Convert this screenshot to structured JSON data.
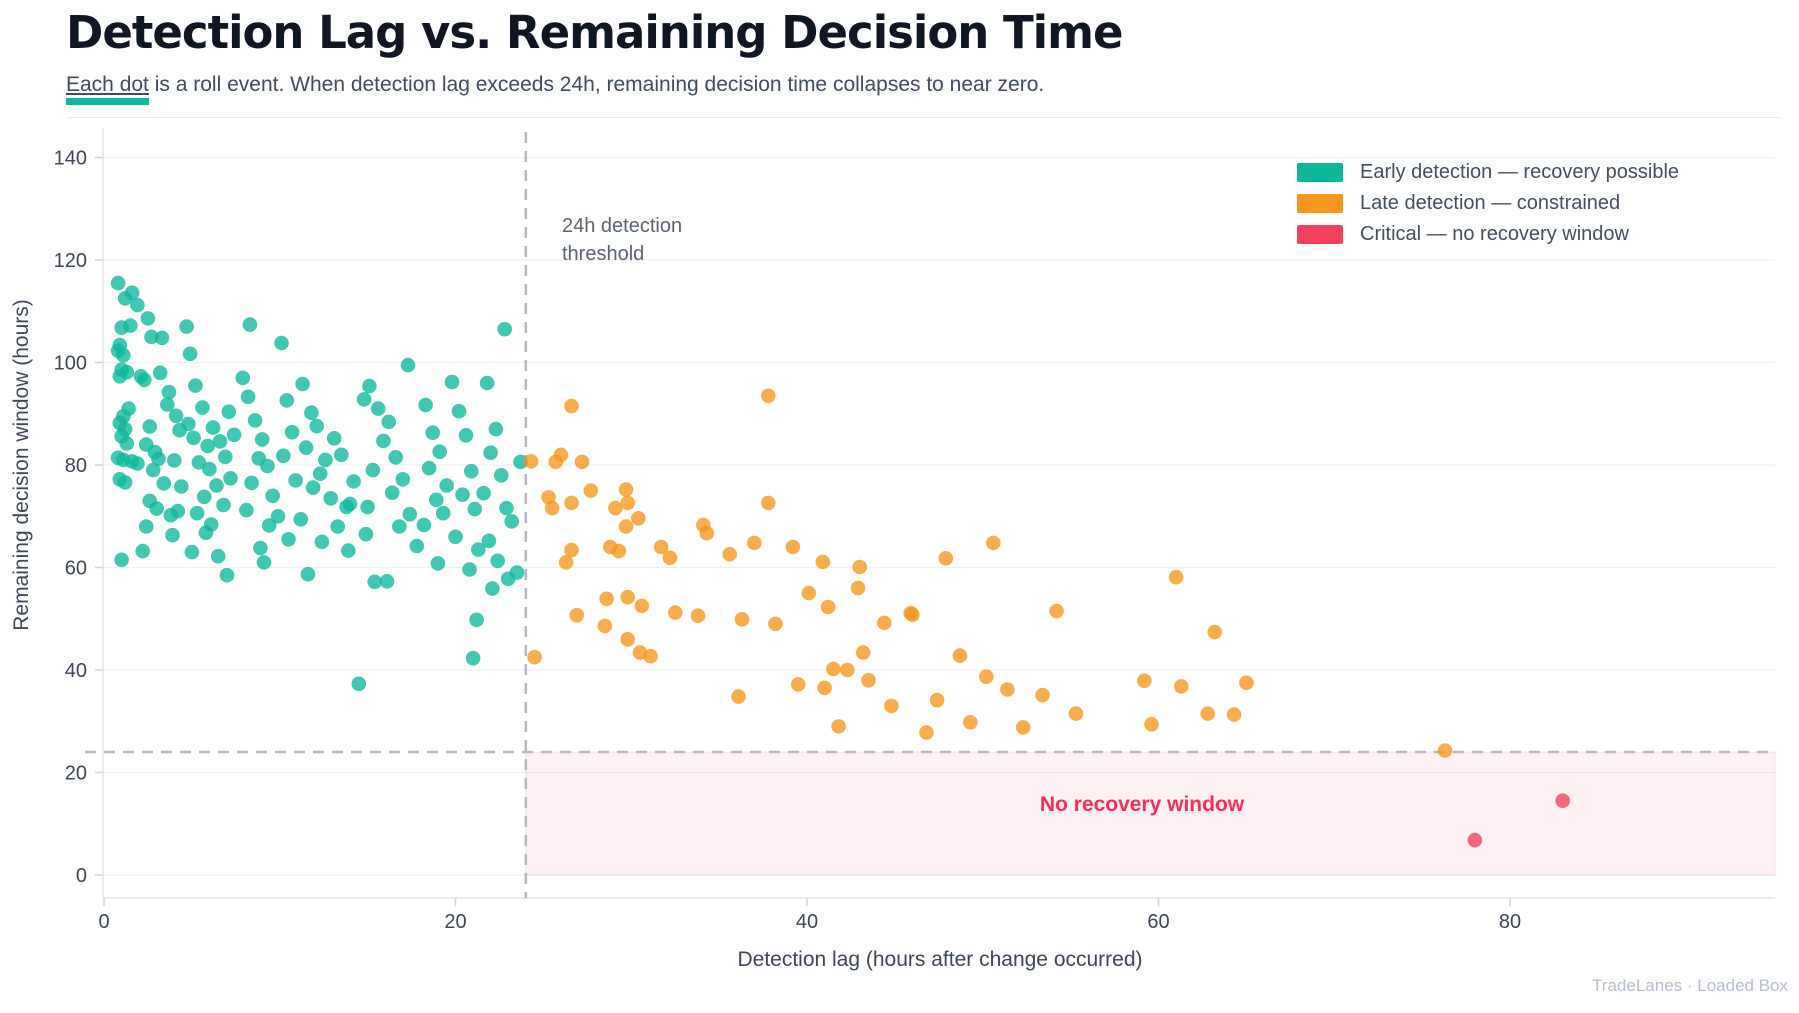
{
  "header": {
    "title": "Detection Lag vs. Remaining Decision Time",
    "subtitle_highlight": "Each dot",
    "subtitle_rest": " is a roll event. When detection lag exceeds 24h, remaining decision time collapses to near zero.",
    "accent_color": "#10b9a0"
  },
  "footer": {
    "text": "TradeLanes · Loaded Box"
  },
  "chart_data": {
    "type": "scatter",
    "title": "Detection Lag vs. Remaining Decision Time",
    "xlabel": "Detection lag (hours after change occurred)",
    "ylabel": "Remaining decision window (hours)",
    "xlim": [
      0,
      95
    ],
    "ylim": [
      -4.5,
      146
    ],
    "xticks": [
      0,
      20,
      40,
      60,
      80
    ],
    "yticks": [
      0,
      20,
      40,
      60,
      80,
      100,
      120,
      140
    ],
    "grid": "horizontal",
    "legend_position": "top-right",
    "threshold": {
      "x": 24,
      "y": 24,
      "label_line1": "24h detection",
      "label_line2": "threshold"
    },
    "no_recovery": {
      "label": "No recovery window",
      "color": "#fb2d52",
      "region": {
        "x_min": 24,
        "x_max": 95,
        "y_min": 0,
        "y_max": 24
      }
    },
    "colors": {
      "grid": "#eef1f5",
      "spine": "#e3e6ec",
      "tick": "#cfd4db",
      "tick_label": "#3e4857",
      "dashed": "#b3b9c5"
    },
    "series": [
      {
        "name": "Early detection — recovery possible",
        "color": "#0cb89c",
        "points": [
          [
            0.8,
            115.5
          ],
          [
            1.2,
            112.5
          ],
          [
            1.6,
            113.6
          ],
          [
            1.9,
            111.2
          ],
          [
            1,
            106.8
          ],
          [
            1.5,
            107.2
          ],
          [
            0.9,
            103.4
          ],
          [
            0.8,
            102.3
          ],
          [
            1.1,
            101.4
          ],
          [
            1,
            98.6
          ],
          [
            1.3,
            98.1
          ],
          [
            0.9,
            97.3
          ],
          [
            1.4,
            91
          ],
          [
            1.1,
            89.5
          ],
          [
            0.9,
            88.2
          ],
          [
            1.2,
            87
          ],
          [
            1,
            85.6
          ],
          [
            1.3,
            84.2
          ],
          [
            0.8,
            81.4
          ],
          [
            1.1,
            81
          ],
          [
            1.6,
            80.7
          ],
          [
            1.9,
            80.3
          ],
          [
            0.9,
            77.2
          ],
          [
            1.2,
            76.6
          ],
          [
            1,
            61.5
          ],
          [
            2.5,
            108.6
          ],
          [
            2.7,
            105
          ],
          [
            3.3,
            104.8
          ],
          [
            2.3,
            96.6
          ],
          [
            2.1,
            97.3
          ],
          [
            3.2,
            98
          ],
          [
            3.7,
            94.2
          ],
          [
            3.6,
            91.8
          ],
          [
            2.6,
            87.5
          ],
          [
            2.4,
            84
          ],
          [
            2.9,
            82.5
          ],
          [
            3.1,
            81.2
          ],
          [
            2.8,
            79
          ],
          [
            3.4,
            76.4
          ],
          [
            2.6,
            73
          ],
          [
            3,
            71.5
          ],
          [
            3.8,
            70.2
          ],
          [
            2.4,
            68
          ],
          [
            4.1,
            89.6
          ],
          [
            4.3,
            86.8
          ],
          [
            4,
            80.9
          ],
          [
            4.4,
            75.8
          ],
          [
            4.2,
            71
          ],
          [
            3.9,
            66.3
          ],
          [
            2.2,
            63.2
          ],
          [
            4.7,
            107
          ],
          [
            4.9,
            101.7
          ],
          [
            5.2,
            95.5
          ],
          [
            5.6,
            91.2
          ],
          [
            4.8,
            88
          ],
          [
            5.1,
            85.3
          ],
          [
            5.9,
            83.7
          ],
          [
            5.4,
            80.5
          ],
          [
            6.2,
            87.3
          ],
          [
            6.6,
            84.6
          ],
          [
            6,
            79.2
          ],
          [
            6.4,
            76
          ],
          [
            5.7,
            73.8
          ],
          [
            6.8,
            72.2
          ],
          [
            5.3,
            70.6
          ],
          [
            6.1,
            68.4
          ],
          [
            7.1,
            90.4
          ],
          [
            7.4,
            85.9
          ],
          [
            6.9,
            81.6
          ],
          [
            7.2,
            77.4
          ],
          [
            5,
            63
          ],
          [
            6.5,
            62.2
          ],
          [
            7,
            58.5
          ],
          [
            5.8,
            66.8
          ],
          [
            8.3,
            107.4
          ],
          [
            8.2,
            93.3
          ],
          [
            7.9,
            97
          ],
          [
            8.6,
            88.7
          ],
          [
            9,
            85
          ],
          [
            8.8,
            81.3
          ],
          [
            9.3,
            79.8
          ],
          [
            8.4,
            76.5
          ],
          [
            9.6,
            74
          ],
          [
            8.1,
            71.2
          ],
          [
            9.9,
            70
          ],
          [
            10.1,
            103.8
          ],
          [
            10.4,
            92.6
          ],
          [
            10.7,
            86.4
          ],
          [
            10.2,
            81.8
          ],
          [
            10.9,
            77
          ],
          [
            9.4,
            68.2
          ],
          [
            10.5,
            65.5
          ],
          [
            8.9,
            63.8
          ],
          [
            9.1,
            61
          ],
          [
            11.3,
            95.8
          ],
          [
            11.8,
            90.2
          ],
          [
            12.1,
            87.6
          ],
          [
            11.5,
            83.4
          ],
          [
            12.6,
            81
          ],
          [
            12.3,
            78.3
          ],
          [
            11.9,
            75.6
          ],
          [
            13.1,
            85.2
          ],
          [
            13.5,
            82
          ],
          [
            12.9,
            73.5
          ],
          [
            13.8,
            71.8
          ],
          [
            11.2,
            69.4
          ],
          [
            13.3,
            68
          ],
          [
            14.2,
            76.8
          ],
          [
            14,
            72.4
          ],
          [
            12.4,
            65
          ],
          [
            13.9,
            63.3
          ],
          [
            14.5,
            37.3
          ],
          [
            11.6,
            58.7
          ],
          [
            15.1,
            95.4
          ],
          [
            14.8,
            92.8
          ],
          [
            15.6,
            91
          ],
          [
            16.2,
            88.4
          ],
          [
            15.9,
            84.7
          ],
          [
            16.6,
            81.5
          ],
          [
            15.3,
            79
          ],
          [
            17,
            77.2
          ],
          [
            16.4,
            74.6
          ],
          [
            15,
            71.8
          ],
          [
            17.4,
            70.4
          ],
          [
            16.8,
            68
          ],
          [
            14.9,
            66.5
          ],
          [
            17.8,
            64.2
          ],
          [
            15.4,
            57.2
          ],
          [
            16.1,
            57.3
          ],
          [
            17.3,
            99.5
          ],
          [
            18.3,
            91.7
          ],
          [
            18.7,
            86.3
          ],
          [
            19.1,
            82.6
          ],
          [
            18.5,
            79.4
          ],
          [
            19.5,
            76
          ],
          [
            18.9,
            73.2
          ],
          [
            19.8,
            96.2
          ],
          [
            20.2,
            90.5
          ],
          [
            20.6,
            85.8
          ],
          [
            19.3,
            70.6
          ],
          [
            20.9,
            78.8
          ],
          [
            20.4,
            74.2
          ],
          [
            18.2,
            68.3
          ],
          [
            21.1,
            71.4
          ],
          [
            20,
            66
          ],
          [
            21.3,
            63.5
          ],
          [
            19,
            60.8
          ],
          [
            20.8,
            59.6
          ],
          [
            21,
            42.3
          ],
          [
            21.2,
            49.8
          ],
          [
            21.8,
            96
          ],
          [
            22.8,
            106.5
          ],
          [
            22.3,
            87
          ],
          [
            22,
            82.4
          ],
          [
            22.6,
            78
          ],
          [
            21.6,
            74.5
          ],
          [
            22.9,
            71.6
          ],
          [
            23.2,
            69
          ],
          [
            21.9,
            65.2
          ],
          [
            22.4,
            61.3
          ],
          [
            23.5,
            59
          ],
          [
            23,
            57.8
          ],
          [
            23.7,
            80.6
          ],
          [
            22.1,
            55.9
          ]
        ]
      },
      {
        "name": "Late detection — constrained",
        "color": "#f9961b",
        "points": [
          [
            24.3,
            80.7
          ],
          [
            25.7,
            80.6
          ],
          [
            25.3,
            73.7
          ],
          [
            25.5,
            71.6
          ],
          [
            26.6,
            91.5
          ],
          [
            26,
            82
          ],
          [
            27.2,
            80.6
          ],
          [
            27.7,
            75
          ],
          [
            29.7,
            75.2
          ],
          [
            26.6,
            72.6
          ],
          [
            29.1,
            71.6
          ],
          [
            29.8,
            72.6
          ],
          [
            30.4,
            69.6
          ],
          [
            29.7,
            68
          ],
          [
            26.6,
            63.4
          ],
          [
            28.8,
            64
          ],
          [
            29.3,
            63.2
          ],
          [
            31.7,
            64
          ],
          [
            32.2,
            61.9
          ],
          [
            34.1,
            68.3
          ],
          [
            34.3,
            66.7
          ],
          [
            37,
            64.8
          ],
          [
            37.8,
            72.6
          ],
          [
            37.8,
            93.5
          ],
          [
            39.2,
            64
          ],
          [
            26.9,
            50.7
          ],
          [
            28.5,
            48.6
          ],
          [
            28.6,
            53.9
          ],
          [
            29.8,
            54.2
          ],
          [
            30.6,
            52.5
          ],
          [
            32.5,
            51.2
          ],
          [
            36.3,
            49.9
          ],
          [
            29.8,
            46
          ],
          [
            30.5,
            43.4
          ],
          [
            31.1,
            42.7
          ],
          [
            24.5,
            42.5
          ],
          [
            26.3,
            61
          ],
          [
            35.6,
            62.6
          ],
          [
            33.8,
            50.6
          ],
          [
            36.1,
            34.8
          ],
          [
            38.2,
            49
          ],
          [
            40.9,
            61.1
          ],
          [
            43,
            60.1
          ],
          [
            42.9,
            56
          ],
          [
            40.1,
            55
          ],
          [
            41.2,
            52.3
          ],
          [
            43.2,
            43.4
          ],
          [
            44.4,
            49.2
          ],
          [
            45.9,
            51.1
          ],
          [
            47.9,
            61.8
          ],
          [
            50.6,
            64.8
          ],
          [
            54.2,
            51.5
          ],
          [
            41.5,
            40.2
          ],
          [
            43.5,
            38
          ],
          [
            46,
            50.8
          ],
          [
            48.7,
            42.8
          ],
          [
            50.2,
            38.7
          ],
          [
            51.4,
            36.2
          ],
          [
            53.4,
            35.1
          ],
          [
            55.3,
            31.5
          ],
          [
            46.8,
            27.8
          ],
          [
            49.3,
            29.8
          ],
          [
            41,
            36.5
          ],
          [
            39.5,
            37.2
          ],
          [
            42.3,
            40
          ],
          [
            44.8,
            33
          ],
          [
            47.4,
            34.1
          ],
          [
            52.3,
            28.8
          ],
          [
            59.6,
            29.4
          ],
          [
            61,
            58.1
          ],
          [
            63.2,
            47.4
          ],
          [
            59.2,
            37.9
          ],
          [
            61.3,
            36.8
          ],
          [
            62.8,
            31.5
          ],
          [
            64.3,
            31.3
          ],
          [
            65,
            37.5
          ],
          [
            41.8,
            29
          ],
          [
            76.3,
            24.3
          ]
        ]
      },
      {
        "name": "Critical — no recovery window",
        "color": "#f43f5e",
        "points": [
          [
            78,
            6.8
          ],
          [
            83,
            14.5
          ]
        ]
      }
    ]
  }
}
